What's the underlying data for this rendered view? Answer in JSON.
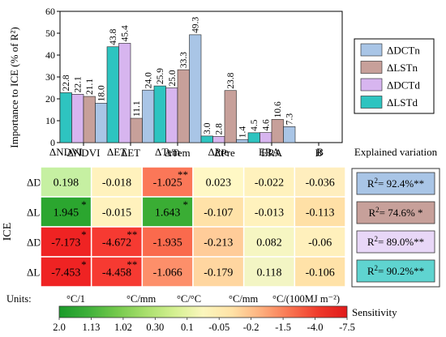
{
  "chart_data": [
    {
      "type": "bar",
      "ylabel": "Importance to ICE (% of R²)",
      "ylim": [
        0,
        60
      ],
      "yticks": [
        0,
        10,
        20,
        30,
        40,
        50,
        60
      ],
      "categories": [
        "ΔNDVI",
        "ΔET",
        "ΔTem",
        "ΔPre",
        "ERA",
        "B"
      ],
      "legend_position": "right",
      "series": [
        {
          "name": "ΔLSTd",
          "color": "#2ec4c0",
          "values": [
            22.8,
            43.8,
            25.9,
            3.0,
            4.5,
            0
          ],
          "labels": [
            "22.8",
            "43.8",
            "25.9",
            "3.0",
            "4.5",
            ""
          ]
        },
        {
          "name": "ΔDCTd",
          "color": "#d7b5ef",
          "values": [
            22.1,
            45.4,
            25.0,
            2.8,
            4.6,
            0
          ],
          "labels": [
            "22.1",
            "45.4",
            "25.0",
            "2.8",
            "4.6",
            ""
          ]
        },
        {
          "name": "ΔLSTn",
          "color": "#c7a09a",
          "values": [
            21.1,
            11.1,
            33.3,
            23.8,
            10.6,
            0
          ],
          "labels": [
            "21.1",
            "11.1",
            "33.3",
            "23.8",
            "10.6",
            ""
          ]
        },
        {
          "name": "ΔDCTn",
          "color": "#a9c5e6",
          "values": [
            18.0,
            24.0,
            49.3,
            1.4,
            7.3,
            0
          ],
          "labels": [
            "18.0",
            "24.0",
            "49.3",
            "1.4",
            "7.3",
            ""
          ]
        }
      ]
    },
    {
      "type": "heatmap",
      "y_axis_label": "ICE",
      "rows": [
        "ΔDCTn",
        "ΔLSTn",
        "ΔDCTd",
        "ΔLSTd"
      ],
      "columns": [
        "ΔNDVI",
        "ΔET",
        "ΔTem",
        "ΔPre",
        "ERA",
        "B"
      ],
      "values": [
        [
          0.198,
          -0.018,
          -1.025,
          0.023,
          -0.022,
          -0.036
        ],
        [
          1.945,
          -0.015,
          1.643,
          -0.107,
          -0.013,
          -0.113
        ],
        [
          -7.173,
          -4.672,
          -1.935,
          -0.213,
          0.082,
          -0.06
        ],
        [
          -7.453,
          -4.458,
          -1.066,
          -0.179,
          0.118,
          -0.106
        ]
      ],
      "cell_labels": [
        [
          "0.198",
          "-0.018",
          "-1.025",
          "0.023",
          "-0.022",
          "-0.036"
        ],
        [
          "1.945",
          "-0.015",
          "1.643",
          "-0.107",
          "-0.013",
          "-0.113"
        ],
        [
          "-7.173",
          "-4.672",
          "-1.935",
          "-0.213",
          "0.082",
          "-0.06"
        ],
        [
          "-7.453",
          "-4.458",
          "-1.066",
          "-0.179",
          "0.118",
          "-0.106"
        ]
      ],
      "significance": [
        [
          "",
          "",
          "**",
          "",
          "",
          ""
        ],
        [
          "*",
          "",
          "*",
          "",
          "",
          ""
        ],
        [
          "*",
          "**",
          "",
          "",
          "",
          ""
        ],
        [
          "*",
          "**",
          "",
          "",
          "",
          ""
        ]
      ],
      "cell_colors": [
        [
          "#c6f0a2",
          "#fff2bd",
          "#fb7758",
          "#fff8c5",
          "#fff2bd",
          "#ffeebe"
        ],
        [
          "#2ba62f",
          "#fff2bd",
          "#3aad34",
          "#ffe2a8",
          "#fff2bd",
          "#ffe0a6"
        ],
        [
          "#ef2323",
          "#f63a32",
          "#fa6a4d",
          "#ffcc99",
          "#f6f6c2",
          "#fff0bc"
        ],
        [
          "#ef2323",
          "#f63a32",
          "#fd8f6a",
          "#ffd6a0",
          "#f3f5c4",
          "#ffe2a8"
        ]
      ],
      "explained_variation": {
        "title": "Explained variation",
        "items": [
          {
            "text": "R²= 92.4%**",
            "color": "#a9c5e6"
          },
          {
            "text": "R²= 74.6% *",
            "color": "#c7a09a"
          },
          {
            "text": "R²= 89.0%**",
            "color": "#e8d7f7"
          },
          {
            "text": "R²= 90.2%**",
            "color": "#5fd4d0"
          }
        ]
      },
      "units": {
        "label": "Units:",
        "items": [
          "°C/1",
          "°C/mm",
          "°C/°C",
          "°C/mm",
          "°C/(100MJ m⁻²)"
        ]
      },
      "colorbar": {
        "title": "Sensitivity",
        "ticks": [
          "2.0",
          "1.13",
          "1.02",
          "0.30",
          "0.1",
          "-0.05",
          "-0.2",
          "-1.5",
          "-4.0",
          "-7.5"
        ],
        "colors": [
          "#1a9a2a",
          "#3eb03a",
          "#74c94c",
          "#a8df6c",
          "#d4f091",
          "#fbf6bd",
          "#ffe2a6",
          "#fdb07e",
          "#f97551",
          "#ef3a2b",
          "#e01b1b"
        ]
      }
    }
  ]
}
